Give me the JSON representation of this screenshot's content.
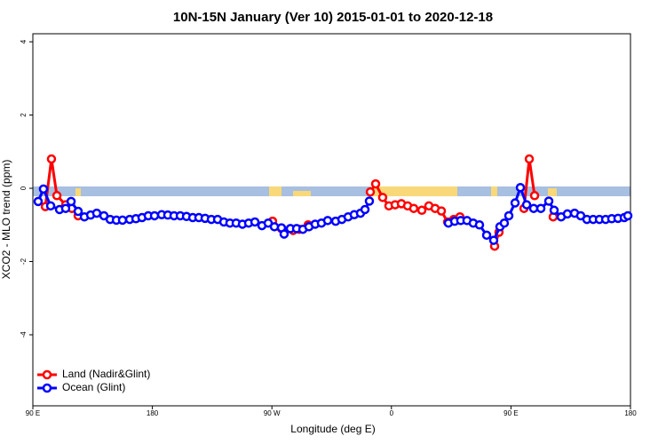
{
  "chart_data": {
    "type": "line",
    "title": "10N-15N January (Ver 10)   2015-01-01 to 2020-12-18",
    "xlabel": "Longitude (deg E)",
    "ylabel": "XCO2 - MLO trend (ppm)",
    "xlim": [
      90,
      540
    ],
    "ylim": [
      -5.94,
      4.22
    ],
    "xticks": [
      {
        "value": 90,
        "label": "90 E"
      },
      180,
      {
        "value": 270,
        "label": "90 W"
      },
      {
        "value": 360,
        "label": "0"
      },
      {
        "value": 450,
        "label": "90 E"
      },
      {
        "value": 540,
        "label": "180"
      }
    ],
    "yticks": [
      -4,
      -2,
      0,
      2,
      4
    ],
    "legend": "bottom-left",
    "series": [
      {
        "name": "Land (Nadir&Glint)",
        "color": "#ff0000",
        "x": [
          99.4,
          104.0,
          108.1,
          114.7,
          119.4,
          124.1,
          null,
          270.5,
          277.2,
          286.0,
          290.6,
          297.3,
          null,
          344.1,
          348.1,
          353.4,
          358.1,
          362.8,
          367.5,
          372.2,
          376.8,
          382.9,
          388.2,
          392.9,
          397.6,
          402.3,
          406.9,
          411.6,
          null,
          437.7,
          441.0,
          null,
          459.8,
          463.8,
          467.8,
          null,
          481.8
        ],
        "values": [
          -0.5,
          0.8,
          -0.2,
          -0.45,
          -0.55,
          -0.75,
          null,
          -0.9,
          -1.1,
          -1.15,
          -1.12,
          -1.0,
          null,
          -0.1,
          0.12,
          -0.25,
          -0.48,
          -0.45,
          -0.42,
          -0.48,
          -0.55,
          -0.6,
          -0.48,
          -0.55,
          -0.62,
          -0.92,
          -0.85,
          -0.78,
          null,
          -1.58,
          -1.2,
          null,
          -0.55,
          0.8,
          -0.2,
          null,
          -0.78
        ]
      },
      {
        "name": "Ocean (Glint)",
        "color": "#0000ff",
        "x": [
          94.0,
          98.0,
          103.4,
          110.1,
          114.7,
          118.8,
          124.1,
          128.8,
          133.5,
          138.1,
          143.5,
          148.2,
          152.9,
          157.5,
          162.9,
          167.6,
          172.2,
          176.9,
          181.6,
          187.0,
          191.6,
          196.3,
          201.0,
          205.7,
          210.4,
          215.0,
          219.7,
          224.4,
          229.1,
          233.8,
          238.4,
          243.1,
          247.8,
          252.5,
          257.2,
          262.5,
          267.2,
          271.9,
          277.2,
          279.2,
          283.9,
          288.6,
          293.3,
          297.9,
          302.6,
          307.3,
          312.0,
          318.0,
          322.7,
          327.4,
          332.0,
          336.7,
          340.1,
          343.4,
          null,
          402.9,
          407.6,
          412.2,
          416.9,
          421.6,
          426.3,
          431.7,
          437.0,
          441.7,
          445.0,
          448.4,
          453.1,
          457.1,
          461.8,
          467.1,
          472.5,
          478.5,
          482.5,
          487.8,
          492.5,
          497.9,
          502.5,
          507.2,
          511.9,
          516.6,
          521.3,
          525.9,
          530.6,
          535.3,
          538.0
        ],
        "values": [
          -0.36,
          -0.02,
          -0.48,
          -0.58,
          -0.55,
          -0.36,
          -0.63,
          -0.78,
          -0.73,
          -0.68,
          -0.75,
          -0.85,
          -0.87,
          -0.87,
          -0.85,
          -0.83,
          -0.8,
          -0.75,
          -0.75,
          -0.72,
          -0.73,
          -0.75,
          -0.75,
          -0.77,
          -0.8,
          -0.8,
          -0.82,
          -0.85,
          -0.85,
          -0.92,
          -0.95,
          -0.95,
          -0.98,
          -0.95,
          -0.92,
          -1.02,
          -0.95,
          -1.05,
          -1.08,
          -1.25,
          -1.1,
          -1.1,
          -1.12,
          -1.05,
          -0.98,
          -0.95,
          -0.88,
          -0.9,
          -0.85,
          -0.78,
          -0.72,
          -0.68,
          -0.58,
          -0.35,
          null,
          -0.95,
          -0.9,
          -0.88,
          -0.88,
          -0.95,
          -1.0,
          -1.28,
          -1.42,
          -1.05,
          -0.95,
          -0.75,
          -0.4,
          0.02,
          -0.45,
          -0.55,
          -0.55,
          -0.35,
          -0.6,
          -0.78,
          -0.7,
          -0.68,
          -0.75,
          -0.85,
          -0.85,
          -0.85,
          -0.85,
          -0.83,
          -0.82,
          -0.8,
          -0.75
        ]
      }
    ]
  }
}
